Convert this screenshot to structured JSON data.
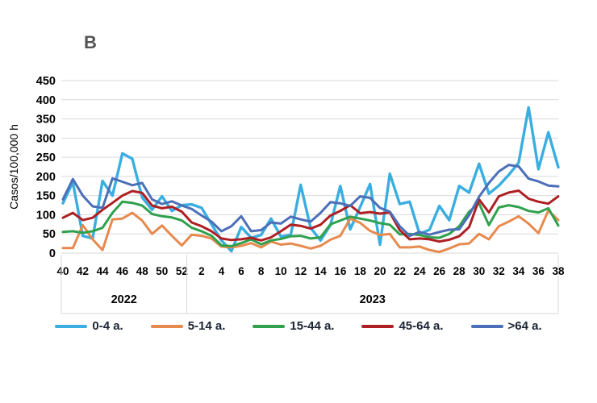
{
  "chart_data": {
    "type": "line",
    "panel_label": "B",
    "ylabel": "Casos/100,000 h",
    "ylim": [
      0,
      450
    ],
    "ytick_step": 50,
    "grid": "horizontal",
    "legend_position": "bottom",
    "x_weeks": [
      40,
      41,
      42,
      43,
      44,
      45,
      46,
      47,
      48,
      49,
      50,
      51,
      52,
      1,
      2,
      3,
      4,
      5,
      6,
      7,
      8,
      9,
      10,
      11,
      12,
      13,
      14,
      15,
      16,
      17,
      18,
      19,
      20,
      21,
      22,
      23,
      24,
      25,
      26,
      27,
      28,
      29,
      30,
      31,
      32,
      33,
      34,
      35,
      36,
      37,
      38
    ],
    "x_tick_rule": "even-weeks-only",
    "year_bands": [
      {
        "label": "2022",
        "start_index": 0,
        "end_index": 12
      },
      {
        "label": "2023",
        "start_index": 13,
        "end_index": 50
      }
    ],
    "series": [
      {
        "name": "0-4 a.",
        "color": "#3AAEE0",
        "values": [
          130,
          185,
          45,
          38,
          188,
          150,
          260,
          246,
          145,
          113,
          148,
          110,
          125,
          127,
          118,
          75,
          33,
          5,
          68,
          40,
          47,
          90,
          43,
          48,
          178,
          66,
          33,
          73,
          175,
          62,
          120,
          180,
          22,
          207,
          128,
          134,
          50,
          61,
          123,
          86,
          175,
          158,
          233,
          155,
          176,
          204,
          236,
          380,
          219,
          315,
          224
        ]
      },
      {
        "name": "5-14 a.",
        "color": "#E78A4E",
        "values": [
          13,
          13,
          73,
          36,
          8,
          88,
          90,
          105,
          85,
          50,
          72,
          45,
          20,
          48,
          45,
          38,
          17,
          15,
          19,
          26,
          15,
          30,
          22,
          25,
          19,
          12,
          19,
          35,
          45,
          90,
          79,
          58,
          47,
          50,
          15,
          15,
          17,
          8,
          3,
          12,
          23,
          25,
          50,
          36,
          70,
          82,
          96,
          77,
          52,
          111,
          86
        ]
      },
      {
        "name": "15-44 a.",
        "color": "#2FA14D",
        "values": [
          55,
          57,
          53,
          57,
          66,
          105,
          134,
          131,
          124,
          102,
          96,
          93,
          85,
          66,
          57,
          45,
          20,
          18,
          26,
          36,
          23,
          33,
          37,
          44,
          45,
          38,
          41,
          75,
          85,
          95,
          90,
          85,
          78,
          74,
          49,
          50,
          47,
          41,
          40,
          50,
          70,
          108,
          130,
          73,
          119,
          125,
          120,
          110,
          106,
          117,
          72
        ]
      },
      {
        "name": "45-64 a.",
        "color": "#AE1F23",
        "values": [
          92,
          105,
          86,
          92,
          113,
          131,
          150,
          162,
          157,
          124,
          117,
          121,
          108,
          80,
          70,
          57,
          38,
          34,
          36,
          40,
          33,
          41,
          57,
          74,
          71,
          64,
          74,
          98,
          110,
          125,
          104,
          107,
          103,
          106,
          60,
          36,
          38,
          36,
          30,
          35,
          44,
          68,
          140,
          106,
          148,
          158,
          163,
          142,
          134,
          129,
          148
        ]
      },
      {
        "name": ">64 a.",
        "color": "#4C6FB7",
        "values": [
          140,
          193,
          150,
          122,
          118,
          195,
          186,
          177,
          183,
          140,
          128,
          135,
          124,
          115,
          98,
          82,
          57,
          70,
          96,
          57,
          60,
          80,
          77,
          95,
          88,
          82,
          105,
          133,
          130,
          123,
          148,
          144,
          118,
          108,
          70,
          45,
          55,
          48,
          55,
          61,
          62,
          99,
          147,
          183,
          213,
          230,
          226,
          194,
          187,
          176,
          174
        ]
      }
    ]
  },
  "style": {
    "grid_color": "#D9D9D9",
    "tick_label_color": "#000000",
    "panel_label_color": "#555555"
  }
}
